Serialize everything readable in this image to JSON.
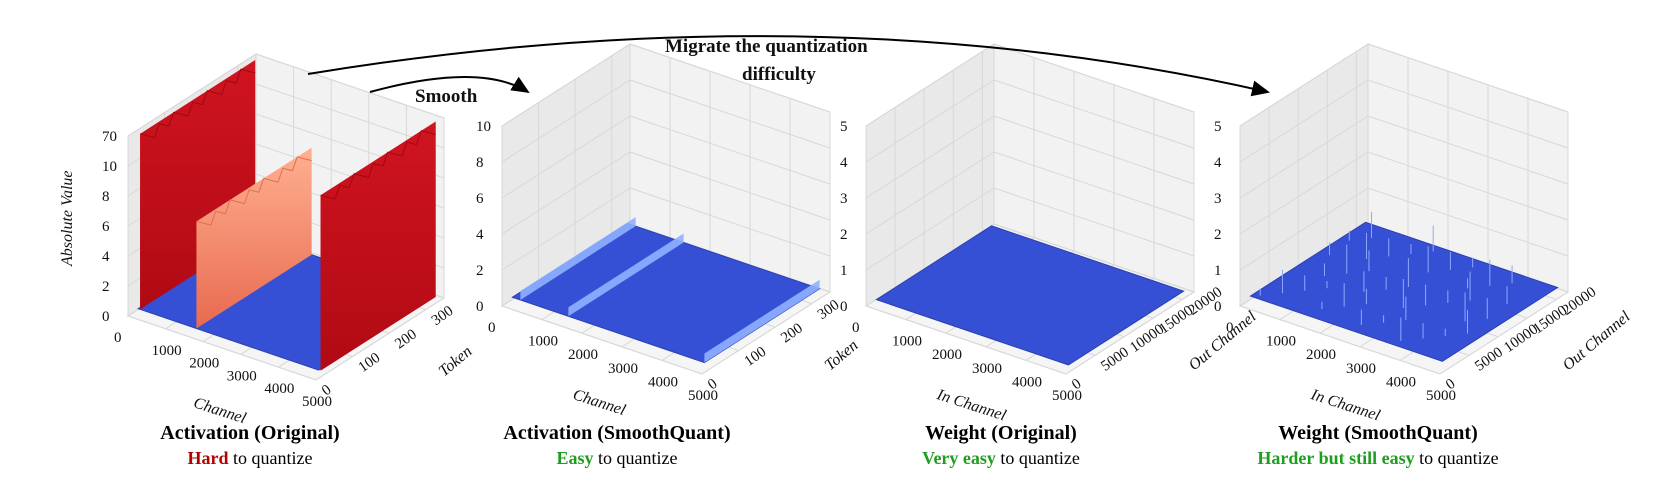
{
  "annotations": {
    "smooth": "Smooth",
    "migrate_line1": "Migrate the quantization",
    "migrate_line2": "difficulty"
  },
  "colors": {
    "hard": "#b30000",
    "easy": "#1e9e1e",
    "surface_low": "#2f4fd0",
    "surface_mid": "#f08060",
    "surface_high": "#c0101c"
  },
  "chart_data": [
    {
      "type": "surface3d",
      "title": "Activation (Original)",
      "subtitle_highlight": "Hard",
      "subtitle_rest": " to quantize",
      "zlabel": "Absolute Value",
      "xlabel": "Channel",
      "ylabel": "Token",
      "xticks": [
        "0",
        "1000",
        "2000",
        "3000",
        "4000",
        "5000"
      ],
      "yticks": [
        "0",
        "100",
        "200",
        "300"
      ],
      "zticks": [
        "0",
        "2",
        "4",
        "6",
        "8",
        "10",
        "70"
      ],
      "z_axis_break": "between 10 and 70",
      "xlim": [
        0,
        5000
      ],
      "ylim": [
        0,
        350
      ],
      "outlier_channels": [
        {
          "channel": 150,
          "value": 70,
          "color": "red"
        },
        {
          "channel": 1650,
          "value": 10,
          "color": "salmon"
        },
        {
          "channel": 5000,
          "value": 70,
          "color": "red"
        }
      ],
      "baseline_value": 0.3
    },
    {
      "type": "surface3d",
      "title": "Activation (SmoothQuant)",
      "subtitle_highlight": "Easy",
      "subtitle_rest": " to quantize",
      "xlabel": "Channel",
      "ylabel": "Token",
      "xticks": [
        "0",
        "1000",
        "2000",
        "3000",
        "4000",
        "5000"
      ],
      "yticks": [
        "0",
        "100",
        "200",
        "300"
      ],
      "zticks": [
        "0",
        "2",
        "4",
        "6",
        "8",
        "10"
      ],
      "xlim": [
        0,
        5000
      ],
      "ylim": [
        0,
        350
      ],
      "zlim": [
        0,
        12
      ],
      "outlier_channels": [
        {
          "channel": 300,
          "value": 1.0
        },
        {
          "channel": 1500,
          "value": 1.0
        },
        {
          "channel": 4900,
          "value": 1.0
        }
      ],
      "baseline_value": 0.4
    },
    {
      "type": "surface3d",
      "title": "Weight (Original)",
      "subtitle_highlight": "Very easy",
      "subtitle_rest": " to quantize",
      "xlabel": "In Channel",
      "ylabel": "Out Channel",
      "xticks": [
        "0",
        "1000",
        "2000",
        "3000",
        "4000",
        "5000"
      ],
      "yticks": [
        "0",
        "5000",
        "10000",
        "15000",
        "20000"
      ],
      "zticks": [
        "0",
        "1",
        "2",
        "3",
        "4",
        "5"
      ],
      "xlim": [
        0,
        5000
      ],
      "ylim": [
        0,
        22000
      ],
      "zlim": [
        0,
        5
      ],
      "baseline_value": 0.1
    },
    {
      "type": "surface3d",
      "title": "Weight (SmoothQuant)",
      "subtitle_highlight": "Harder but still easy",
      "subtitle_rest": " to quantize",
      "xlabel": "In Channel",
      "ylabel": "Out Channel",
      "xticks": [
        "0",
        "1000",
        "2000",
        "3000",
        "4000",
        "5000"
      ],
      "yticks": [
        "0",
        "5000",
        "10000",
        "15000",
        "20000"
      ],
      "zticks": [
        "0",
        "1",
        "2",
        "3",
        "4",
        "5"
      ],
      "xlim": [
        0,
        5000
      ],
      "ylim": [
        0,
        22000
      ],
      "zlim": [
        0,
        5
      ],
      "baseline_value": 0.2
    }
  ]
}
